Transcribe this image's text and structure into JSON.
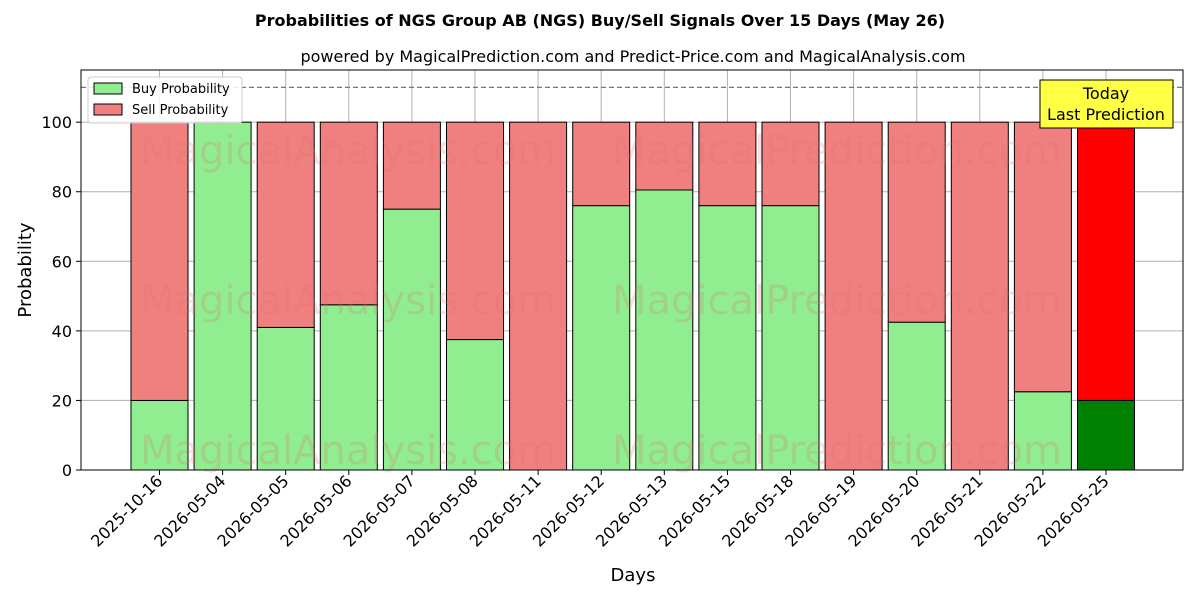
{
  "chart_data": {
    "type": "bar",
    "stacked": true,
    "title": "Probabilities of NGS Group AB (NGS) Buy/Sell Signals Over 15 Days (May 26)",
    "subtitle": "powered by MagicalPrediction.com and Predict-Price.com and MagicalAnalysis.com",
    "xlabel": "Days",
    "ylabel": "Probability",
    "ylim": [
      0,
      115
    ],
    "yticks": [
      0,
      20,
      40,
      60,
      80,
      100
    ],
    "grid": true,
    "legend_position": "top-left",
    "reference_line": 110,
    "categories": [
      "2025-10-16",
      "2026-05-04",
      "2026-05-05",
      "2026-05-06",
      "2026-05-07",
      "2026-05-08",
      "2026-05-11",
      "2026-05-12",
      "2026-05-13",
      "2026-05-15",
      "2026-05-18",
      "2026-05-19",
      "2026-05-20",
      "2026-05-21",
      "2026-05-22",
      "2026-05-25"
    ],
    "series": [
      {
        "name": "Buy Probability",
        "color": "#90ee90",
        "values": [
          20,
          100,
          41,
          47.5,
          75,
          37.5,
          0,
          76,
          80.5,
          76,
          76,
          0,
          42.5,
          0,
          22.5,
          20
        ]
      },
      {
        "name": "Sell Probability",
        "color": "#f08080",
        "values": [
          80,
          0,
          59,
          52.5,
          25,
          62.5,
          100,
          24,
          19.5,
          24,
          24,
          100,
          57.5,
          100,
          77.5,
          80
        ]
      }
    ],
    "highlight": {
      "index": 15,
      "buy_color": "#008000",
      "sell_color": "#ff0000"
    },
    "annotation": {
      "lines": [
        "Today",
        "Last Prediction"
      ],
      "background": "#ffff44"
    },
    "watermarks": [
      "MagicalAnalysis.com",
      "MagicalPrediction.com"
    ]
  }
}
